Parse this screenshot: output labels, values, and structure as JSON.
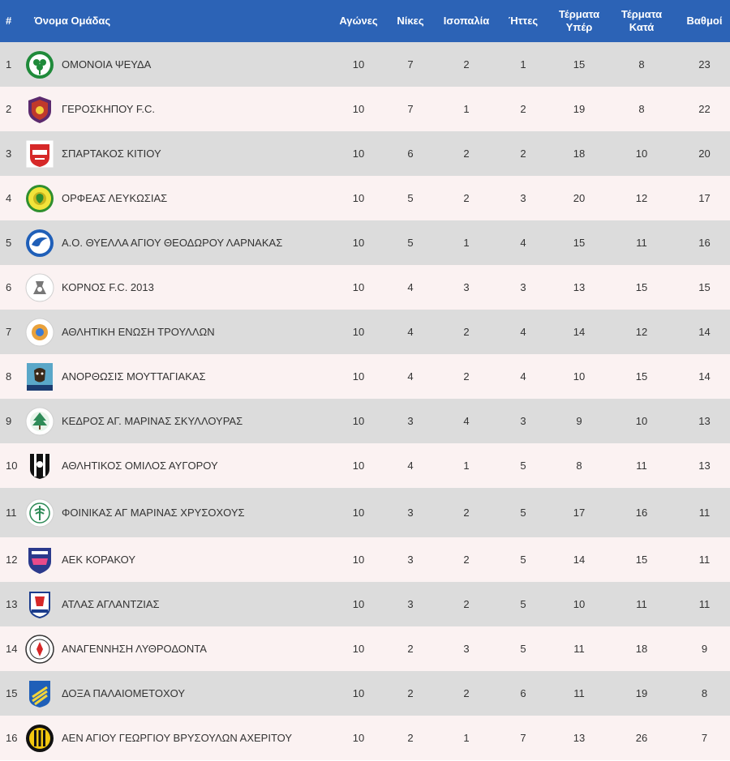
{
  "header": {
    "pos": "#",
    "team": "Όνομα Ομάδας",
    "played": "Αγώνες",
    "wins": "Νίκες",
    "draws": "Ισοπαλία",
    "losses": "Ήττες",
    "gf_line1": "Τέρματα",
    "gf_line2": "Υπέρ",
    "ga_line1": "Τέρματα",
    "ga_line2": "Κατά",
    "points": "Βαθμοί"
  },
  "colors": {
    "header_bg": "#2c63b6",
    "row_odd": "#dcdcdc",
    "row_even": "#fbf2f2"
  },
  "rows": [
    {
      "pos": "1",
      "team": "ΟΜΟΝΟΙΑ ΨΕΥΔΑ",
      "crest": "omonoia-psevda-crest-icon",
      "played": "10",
      "wins": "7",
      "draws": "2",
      "losses": "1",
      "gf": "15",
      "ga": "8",
      "points": "23"
    },
    {
      "pos": "2",
      "team": "ΓΕΡΟΣΚΗΠΟΥ F.C.",
      "crest": "geroskipou-crest-icon",
      "played": "10",
      "wins": "7",
      "draws": "1",
      "losses": "2",
      "gf": "19",
      "ga": "8",
      "points": "22"
    },
    {
      "pos": "3",
      "team": "ΣΠΑΡΤΑΚΟΣ ΚΙΤΙΟΥ",
      "crest": "spartakos-kitiou-crest-icon",
      "played": "10",
      "wins": "6",
      "draws": "2",
      "losses": "2",
      "gf": "18",
      "ga": "10",
      "points": "20"
    },
    {
      "pos": "4",
      "team": "ΟΡΦΕΑΣ ΛΕΥΚΩΣΙΑΣ",
      "crest": "orfeas-crest-icon",
      "played": "10",
      "wins": "5",
      "draws": "2",
      "losses": "3",
      "gf": "20",
      "ga": "12",
      "points": "17"
    },
    {
      "pos": "5",
      "team": "Α.Ο. ΘΥΕΛΛΑ ΑΓΙΟΥ ΘΕΟΔΩΡΟΥ ΛΑΡΝΑΚΑΣ",
      "crest": "thyella-crest-icon",
      "played": "10",
      "wins": "5",
      "draws": "1",
      "losses": "4",
      "gf": "15",
      "ga": "11",
      "points": "16"
    },
    {
      "pos": "6",
      "team": "ΚΟΡΝΟΣ F.C. 2013",
      "crest": "kornos-crest-icon",
      "played": "10",
      "wins": "4",
      "draws": "3",
      "losses": "3",
      "gf": "13",
      "ga": "15",
      "points": "15"
    },
    {
      "pos": "7",
      "team": "ΑΘΛΗΤΙΚΗ ΕΝΩΣΗ ΤΡΟΥΛΛΩΝ",
      "crest": "troullon-crest-icon",
      "played": "10",
      "wins": "4",
      "draws": "2",
      "losses": "4",
      "gf": "14",
      "ga": "12",
      "points": "14"
    },
    {
      "pos": "8",
      "team": "ΑΝΟΡΘΩΣΙΣ ΜΟΥΤΤΑΓΙΑΚΑΣ",
      "crest": "anorthosis-crest-icon",
      "played": "10",
      "wins": "4",
      "draws": "2",
      "losses": "4",
      "gf": "10",
      "ga": "15",
      "points": "14"
    },
    {
      "pos": "9",
      "team": "ΚΕΔΡΟΣ ΑΓ. ΜΑΡΙΝΑΣ ΣΚΥΛΛΟΥΡΑΣ",
      "crest": "kedros-crest-icon",
      "played": "10",
      "wins": "3",
      "draws": "4",
      "losses": "3",
      "gf": "9",
      "ga": "10",
      "points": "13"
    },
    {
      "pos": "10",
      "team": "ΑΘΛΗΤΙΚΟΣ ΟΜΙΛΟΣ ΑΥΓΟΡΟΥ",
      "crest": "avgorou-crest-icon",
      "played": "10",
      "wins": "4",
      "draws": "1",
      "losses": "5",
      "gf": "8",
      "ga": "11",
      "points": "13"
    },
    {
      "pos": "11",
      "team": "ΦΟΙΝΙΚΑΣ ΑΓ ΜΑΡΙΝΑΣ ΧΡΥΣΟΧΟΥΣ",
      "crest": "foinikas-crest-icon",
      "played": "10",
      "wins": "3",
      "draws": "2",
      "losses": "5",
      "gf": "17",
      "ga": "16",
      "points": "11"
    },
    {
      "pos": "12",
      "team": "ΑΕΚ ΚΟΡΑΚΟΥ",
      "crest": "aek-korakou-crest-icon",
      "played": "10",
      "wins": "3",
      "draws": "2",
      "losses": "5",
      "gf": "14",
      "ga": "15",
      "points": "11"
    },
    {
      "pos": "13",
      "team": "ΑΤΛΑΣ ΑΓΛΑΝΤΖΙΑΣ",
      "crest": "atlas-crest-icon",
      "played": "10",
      "wins": "3",
      "draws": "2",
      "losses": "5",
      "gf": "10",
      "ga": "11",
      "points": "11"
    },
    {
      "pos": "14",
      "team": "ΑΝΑΓΕΝΝΗΣΗ ΛΥΘΡΟΔΟΝΤΑ",
      "crest": "anagennisi-crest-icon",
      "played": "10",
      "wins": "2",
      "draws": "3",
      "losses": "5",
      "gf": "11",
      "ga": "18",
      "points": "9"
    },
    {
      "pos": "15",
      "team": "ΔΟΞΑ ΠΑΛΑΙΟΜΕΤΟΧΟΥ",
      "crest": "doxa-crest-icon",
      "played": "10",
      "wins": "2",
      "draws": "2",
      "losses": "6",
      "gf": "11",
      "ga": "19",
      "points": "8"
    },
    {
      "pos": "16",
      "team": "ΑΕΝ ΑΓΙΟΥ ΓΕΩΡΓΙΟΥ ΒΡΥΣΟΥΛΩΝ ΑΧΕΡΙΤΟΥ",
      "crest": "aen-crest-icon",
      "played": "10",
      "wins": "2",
      "draws": "1",
      "losses": "7",
      "gf": "13",
      "ga": "26",
      "points": "7"
    }
  ]
}
